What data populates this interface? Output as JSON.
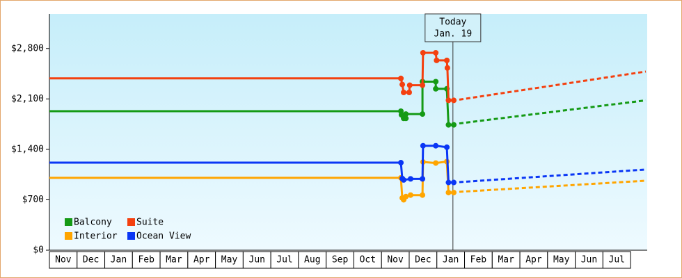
{
  "chart_data": {
    "type": "line",
    "months": [
      "Nov",
      "Dec",
      "Jan",
      "Feb",
      "Mar",
      "Apr",
      "May",
      "Jun",
      "Jul",
      "Aug",
      "Sep",
      "Oct",
      "Nov",
      "Dec",
      "Jan",
      "Feb",
      "Mar",
      "Apr",
      "May",
      "Jun",
      "Jul"
    ],
    "xlim": [
      0,
      21.6
    ],
    "ylim": [
      0,
      3280
    ],
    "yticks": [
      {
        "value": 0,
        "label": "$0"
      },
      {
        "value": 700,
        "label": "$700"
      },
      {
        "value": 1400,
        "label": "$1,400"
      },
      {
        "value": 2100,
        "label": "$2,100"
      },
      {
        "value": 2800,
        "label": "$2,800"
      }
    ],
    "grid": false,
    "legend": "bottom-left",
    "annotation": {
      "lines": [
        "Today",
        "Jan. 19"
      ],
      "x": 14.58
    },
    "series": [
      {
        "name": "Balcony",
        "color": "#159a15",
        "x": [
          0,
          12.7,
          12.72,
          12.8,
          12.88,
          12.88,
          13.48,
          13.48,
          13.96,
          13.96,
          14.36,
          14.42,
          14.61
        ],
        "values": [
          1930,
          1930,
          1880,
          1830,
          1830,
          1890,
          1890,
          2340,
          2340,
          2240,
          2240,
          1740,
          1740
        ],
        "forecast": {
          "x": [
            14.81,
            21.55
          ],
          "values": [
            1760,
            2080
          ]
        }
      },
      {
        "name": "Suite",
        "color": "#f4400f",
        "x": [
          0,
          12.7,
          12.75,
          12.8,
          13.0,
          13.02,
          13.48,
          13.5,
          13.96,
          13.99,
          14.36,
          14.38,
          14.42,
          14.61
        ],
        "values": [
          2385,
          2385,
          2300,
          2190,
          2190,
          2290,
          2290,
          2740,
          2740,
          2635,
          2635,
          2530,
          2080,
          2080
        ],
        "forecast": {
          "x": [
            14.81,
            21.55
          ],
          "values": [
            2090,
            2480
          ]
        }
      },
      {
        "name": "Interior",
        "color": "#ffa500",
        "x": [
          0,
          12.7,
          12.75,
          12.8,
          12.88,
          13.05,
          13.48,
          13.5,
          13.96,
          14.36,
          14.42,
          14.61
        ],
        "values": [
          1005,
          1005,
          725,
          700,
          745,
          765,
          765,
          1225,
          1210,
          1230,
          800,
          800
        ],
        "forecast": {
          "x": [
            14.81,
            21.55
          ],
          "values": [
            810,
            965
          ]
        }
      },
      {
        "name": "Ocean View",
        "color": "#0a36f5",
        "x": [
          0,
          12.7,
          12.75,
          12.8,
          13.05,
          13.48,
          13.5,
          13.96,
          14.36,
          14.42,
          14.61
        ],
        "values": [
          1215,
          1215,
          995,
          975,
          990,
          990,
          1450,
          1450,
          1430,
          940,
          940
        ],
        "forecast": {
          "x": [
            14.81,
            21.55
          ],
          "values": [
            945,
            1120
          ]
        }
      }
    ]
  }
}
